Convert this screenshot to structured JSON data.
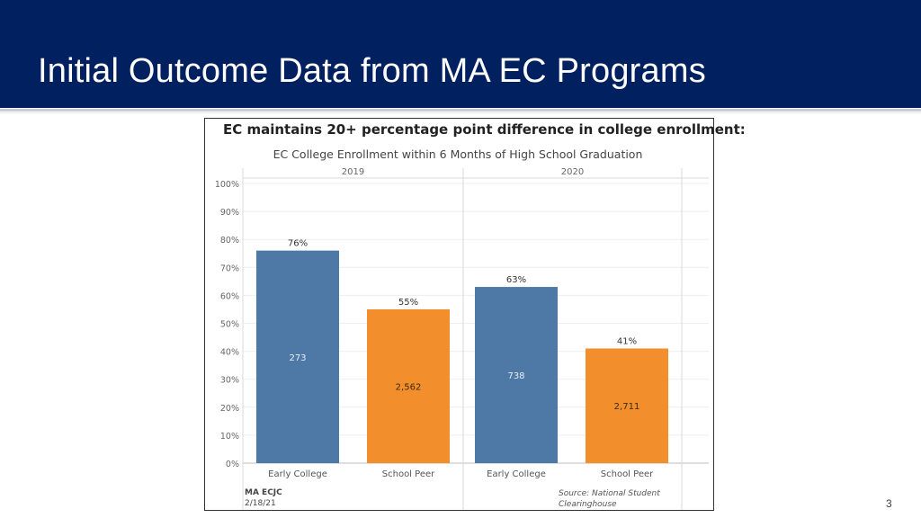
{
  "slide": {
    "title": "Initial Outcome Data from MA EC Programs",
    "page_number": "3"
  },
  "colors": {
    "title_bar": "#002060",
    "early_college": "#4e79a7",
    "school_peer": "#f28e2b"
  },
  "chart_data": {
    "type": "bar",
    "headline": "EC maintains 20+ percentage point difference in college enrollment:",
    "title": "EC College Enrollment within 6 Months of High School Graduation",
    "panels": [
      {
        "label": "2019",
        "bars": [
          {
            "category": "Early College",
            "value": 76,
            "value_label": "76%",
            "count": "273",
            "color": "#4e79a7"
          },
          {
            "category": "School Peer",
            "value": 55,
            "value_label": "55%",
            "count": "2,562",
            "color": "#f28e2b"
          }
        ]
      },
      {
        "label": "2020",
        "bars": [
          {
            "category": "Early College",
            "value": 63,
            "value_label": "63%",
            "count": "738",
            "color": "#4e79a7"
          },
          {
            "category": "School Peer",
            "value": 41,
            "value_label": "41%",
            "count": "2,711",
            "color": "#f28e2b"
          }
        ]
      }
    ],
    "y_ticks": [
      "0%",
      "10%",
      "20%",
      "30%",
      "40%",
      "50%",
      "60%",
      "70%",
      "80%",
      "90%",
      "100%"
    ],
    "ylim": [
      0,
      100
    ],
    "grid": true,
    "footer_left": [
      "MA ECJC",
      "2/18/21"
    ],
    "footer_right": [
      "Source: National Student",
      "Clearinghouse"
    ]
  }
}
